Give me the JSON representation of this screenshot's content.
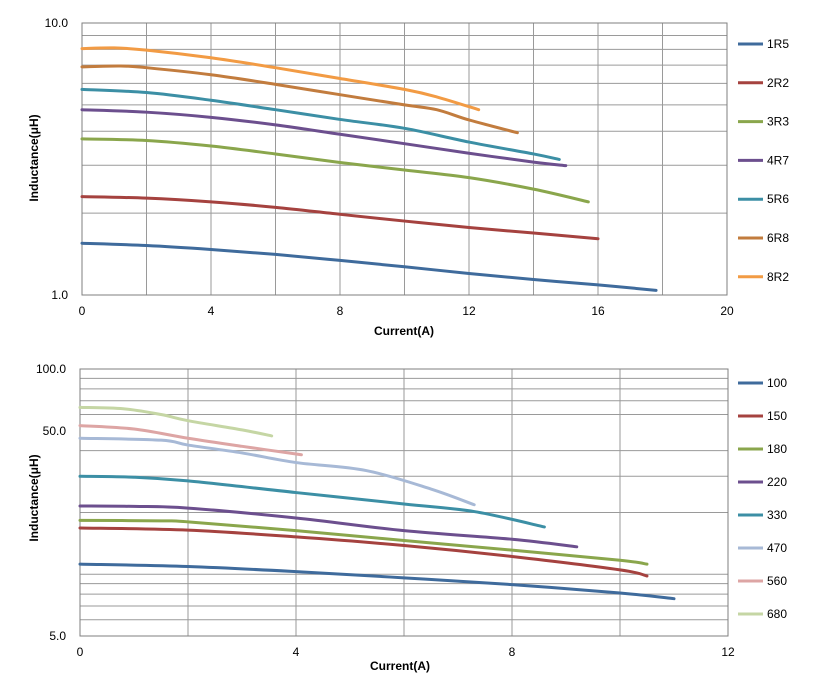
{
  "chart_data": [
    {
      "type": "line",
      "xlabel": "Current(A)",
      "ylabel": "Inductance(μH)",
      "xlim": [
        0,
        20
      ],
      "ylim": [
        1.0,
        10.0
      ],
      "yscale": "log",
      "grid": true,
      "legend_placement": "right",
      "x_ticks": [
        "0",
        "4",
        "8",
        "12",
        "16",
        "20"
      ],
      "y_ticks": [
        "1.0",
        "10.0"
      ],
      "series": [
        {
          "name": "1R5",
          "color": "#3F6B9C",
          "points": [
            [
              0,
              1.55
            ],
            [
              2,
              1.52
            ],
            [
              4,
              1.47
            ],
            [
              6,
              1.41
            ],
            [
              8,
              1.34
            ],
            [
              10,
              1.27
            ],
            [
              12,
              1.2
            ],
            [
              14,
              1.14
            ],
            [
              16,
              1.09
            ],
            [
              17.8,
              1.04
            ]
          ]
        },
        {
          "name": "2R2",
          "color": "#A5423F",
          "points": [
            [
              0,
              2.3
            ],
            [
              2,
              2.27
            ],
            [
              4,
              2.2
            ],
            [
              6,
              2.1
            ],
            [
              8,
              1.98
            ],
            [
              10,
              1.87
            ],
            [
              12,
              1.77
            ],
            [
              14,
              1.69
            ],
            [
              16,
              1.61
            ]
          ]
        },
        {
          "name": "4R7",
          "color": "#6C4F8E",
          "points": [
            [
              0,
              4.8
            ],
            [
              2,
              4.7
            ],
            [
              4,
              4.5
            ],
            [
              6,
              4.22
            ],
            [
              8,
              3.9
            ],
            [
              10,
              3.6
            ],
            [
              12,
              3.32
            ],
            [
              14,
              3.08
            ],
            [
              15,
              2.99
            ]
          ]
        },
        {
          "name": "5R6",
          "color": "#3C8FA5",
          "points": [
            [
              0,
              5.7
            ],
            [
              2,
              5.55
            ],
            [
              4,
              5.2
            ],
            [
              6,
              4.8
            ],
            [
              8,
              4.42
            ],
            [
              10,
              4.1
            ],
            [
              12,
              3.65
            ],
            [
              14,
              3.3
            ],
            [
              14.8,
              3.15
            ]
          ]
        },
        {
          "name": "3R3",
          "color": "#8AA64C",
          "points": [
            [
              0,
              3.75
            ],
            [
              2,
              3.7
            ],
            [
              4,
              3.53
            ],
            [
              6,
              3.3
            ],
            [
              8,
              3.07
            ],
            [
              10,
              2.88
            ],
            [
              12,
              2.7
            ],
            [
              14,
              2.45
            ],
            [
              15.7,
              2.2
            ]
          ]
        },
        {
          "name": "6R8",
          "color": "#C27C3E",
          "points": [
            [
              0,
              6.9
            ],
            [
              1.2,
              6.95
            ],
            [
              2,
              6.85
            ],
            [
              4,
              6.45
            ],
            [
              6,
              5.95
            ],
            [
              8,
              5.45
            ],
            [
              10,
              5.0
            ],
            [
              11,
              4.8
            ],
            [
              12,
              4.4
            ],
            [
              13.5,
              3.95
            ]
          ]
        },
        {
          "name": "8R2",
          "color": "#F29B44",
          "points": [
            [
              0,
              8.05
            ],
            [
              1,
              8.1
            ],
            [
              2,
              7.95
            ],
            [
              4,
              7.45
            ],
            [
              6,
              6.85
            ],
            [
              8,
              6.25
            ],
            [
              10,
              5.7
            ],
            [
              11,
              5.35
            ],
            [
              12.3,
              4.8
            ]
          ]
        }
      ],
      "legend": [
        "1R5",
        "2R2",
        "3R3",
        "4R7",
        "5R6",
        "6R8",
        "8R2"
      ]
    },
    {
      "type": "line",
      "xlabel": "Current(A)",
      "ylabel": "Inductance(μH)",
      "xlim": [
        0,
        12
      ],
      "ylim": [
        5.0,
        100.0
      ],
      "yscale": "log",
      "grid": true,
      "legend_placement": "right",
      "x_ticks": [
        "0",
        "4",
        "8",
        "12"
      ],
      "y_ticks": [
        "5.0",
        "50.0",
        "100.0"
      ],
      "series": [
        {
          "name": "100",
          "color": "#3F6B9C",
          "points": [
            [
              0,
              11.2
            ],
            [
              2,
              10.9
            ],
            [
              4,
              10.3
            ],
            [
              6,
              9.6
            ],
            [
              8,
              8.9
            ],
            [
              10,
              8.1
            ],
            [
              11,
              7.6
            ]
          ]
        },
        {
          "name": "150",
          "color": "#A5423F",
          "points": [
            [
              0,
              16.8
            ],
            [
              2,
              16.4
            ],
            [
              4,
              15.2
            ],
            [
              6,
              13.8
            ],
            [
              8,
              12.2
            ],
            [
              10,
              10.5
            ],
            [
              10.5,
              9.8
            ]
          ]
        },
        {
          "name": "180",
          "color": "#8AA64C",
          "points": [
            [
              0,
              18.3
            ],
            [
              1.5,
              18.2
            ],
            [
              2,
              18
            ],
            [
              4,
              16.3
            ],
            [
              6,
              14.6
            ],
            [
              8,
              13.1
            ],
            [
              10,
              11.7
            ],
            [
              10.5,
              11.2
            ]
          ]
        },
        {
          "name": "220",
          "color": "#6C4F8E",
          "points": [
            [
              0,
              21.5
            ],
            [
              1,
              21.4
            ],
            [
              2,
              21
            ],
            [
              4,
              18.8
            ],
            [
              6,
              16.3
            ],
            [
              8,
              14.8
            ],
            [
              9.2,
              13.6
            ]
          ]
        },
        {
          "name": "330",
          "color": "#3C8FA5",
          "points": [
            [
              0,
              30
            ],
            [
              1,
              29.7
            ],
            [
              2,
              28.5
            ],
            [
              4,
              25
            ],
            [
              6,
              22
            ],
            [
              7.3,
              20.2
            ],
            [
              8.6,
              17
            ]
          ]
        },
        {
          "name": "470",
          "color": "#A7B9D6",
          "points": [
            [
              0,
              46
            ],
            [
              1.5,
              45
            ],
            [
              2,
              42.6
            ],
            [
              3,
              39
            ],
            [
              4,
              35
            ],
            [
              5.3,
              32
            ],
            [
              6.5,
              26
            ],
            [
              7.3,
              21.8
            ]
          ]
        },
        {
          "name": "560",
          "color": "#DDA5A4",
          "points": [
            [
              0,
              53
            ],
            [
              1,
              51
            ],
            [
              2,
              46
            ],
            [
              3,
              42
            ],
            [
              4.1,
              38.2
            ]
          ]
        },
        {
          "name": "680",
          "color": "#C5D6A4",
          "points": [
            [
              0,
              65
            ],
            [
              0.8,
              64
            ],
            [
              1.5,
              60
            ],
            [
              2,
              56
            ],
            [
              3,
              50.5
            ],
            [
              3.55,
              47.2
            ]
          ]
        }
      ],
      "legend": [
        "100",
        "150",
        "180",
        "220",
        "330",
        "470",
        "560",
        "680"
      ]
    }
  ]
}
